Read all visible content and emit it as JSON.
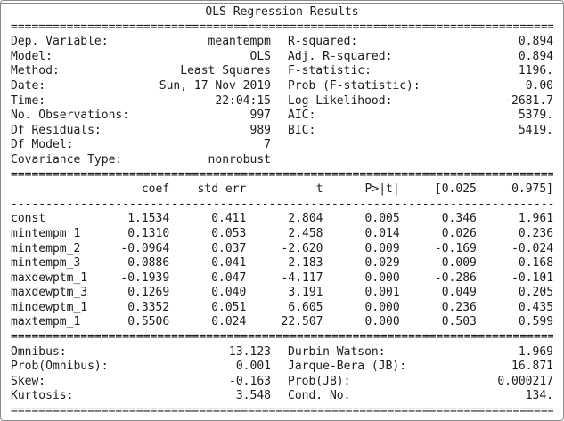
{
  "title": "OLS Regression Results",
  "colors": {
    "text": "#1c1c1c",
    "border": "#8a8a8a",
    "background": "#ffffff"
  },
  "separators": {
    "double": "==============================================================================",
    "single": "------------------------------------------------------------------------------"
  },
  "info_left": [
    {
      "label": "Dep. Variable:",
      "value": "meantempm"
    },
    {
      "label": "Model:",
      "value": "OLS"
    },
    {
      "label": "Method:",
      "value": "Least Squares"
    },
    {
      "label": "Date:",
      "value": "Sun, 17 Nov 2019"
    },
    {
      "label": "Time:",
      "value": "22:04:15"
    },
    {
      "label": "No. Observations:",
      "value": "997"
    },
    {
      "label": "Df Residuals:",
      "value": "989"
    },
    {
      "label": "Df Model:",
      "value": "7"
    },
    {
      "label": "Covariance Type:",
      "value": "nonrobust"
    }
  ],
  "info_right": [
    {
      "label": "R-squared:",
      "value": "0.894"
    },
    {
      "label": "Adj. R-squared:",
      "value": "0.894"
    },
    {
      "label": "F-statistic:",
      "value": "1196."
    },
    {
      "label": "Prob (F-statistic):",
      "value": "0.00"
    },
    {
      "label": "Log-Likelihood:",
      "value": "-2681.7"
    },
    {
      "label": "AIC:",
      "value": "5379."
    },
    {
      "label": "BIC:",
      "value": "5419."
    },
    {
      "label": "",
      "value": ""
    },
    {
      "label": "",
      "value": ""
    }
  ],
  "coef_table": {
    "headers": [
      "",
      "coef",
      "std err",
      "t",
      "P>|t|",
      "[0.025",
      "0.975]"
    ],
    "rows": [
      {
        "name": "const",
        "coef": "1.1534",
        "std_err": "0.411",
        "t": "2.804",
        "p": "0.005",
        "ci_low": "0.346",
        "ci_high": "1.961"
      },
      {
        "name": "mintempm_1",
        "coef": "0.1310",
        "std_err": "0.053",
        "t": "2.458",
        "p": "0.014",
        "ci_low": "0.026",
        "ci_high": "0.236"
      },
      {
        "name": "mintempm_2",
        "coef": "-0.0964",
        "std_err": "0.037",
        "t": "-2.620",
        "p": "0.009",
        "ci_low": "-0.169",
        "ci_high": "-0.024"
      },
      {
        "name": "mintempm_3",
        "coef": "0.0886",
        "std_err": "0.041",
        "t": "2.183",
        "p": "0.029",
        "ci_low": "0.009",
        "ci_high": "0.168"
      },
      {
        "name": "maxdewptm_1",
        "coef": "-0.1939",
        "std_err": "0.047",
        "t": "-4.117",
        "p": "0.000",
        "ci_low": "-0.286",
        "ci_high": "-0.101"
      },
      {
        "name": "maxdewptm_3",
        "coef": "0.1269",
        "std_err": "0.040",
        "t": "3.191",
        "p": "0.001",
        "ci_low": "0.049",
        "ci_high": "0.205"
      },
      {
        "name": "mindewptm_1",
        "coef": "0.3352",
        "std_err": "0.051",
        "t": "6.605",
        "p": "0.000",
        "ci_low": "0.236",
        "ci_high": "0.435"
      },
      {
        "name": "maxtempm_1",
        "coef": "0.5506",
        "std_err": "0.024",
        "t": "22.507",
        "p": "0.000",
        "ci_low": "0.503",
        "ci_high": "0.599"
      }
    ]
  },
  "diagnostics_left": [
    {
      "label": "Omnibus:",
      "value": "13.123"
    },
    {
      "label": "Prob(Omnibus):",
      "value": "0.001"
    },
    {
      "label": "Skew:",
      "value": "-0.163"
    },
    {
      "label": "Kurtosis:",
      "value": "3.548"
    }
  ],
  "diagnostics_right": [
    {
      "label": "Durbin-Watson:",
      "value": "1.969"
    },
    {
      "label": "Jarque-Bera (JB):",
      "value": "16.871"
    },
    {
      "label": "Prob(JB):",
      "value": "0.000217"
    },
    {
      "label": "Cond. No.",
      "value": "134."
    }
  ]
}
